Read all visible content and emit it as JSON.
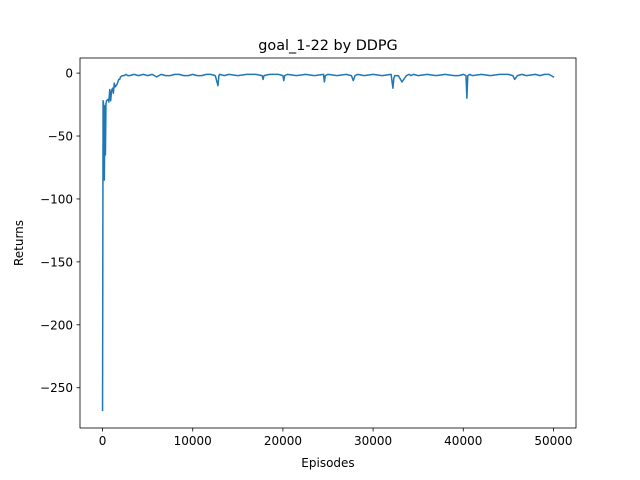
{
  "chart_data": {
    "type": "line",
    "title": "goal_1-22 by DDPG",
    "xlabel": "Episodes",
    "ylabel": "Returns",
    "xlim": [
      -2500,
      52500
    ],
    "ylim": [
      -282,
      12
    ],
    "xticks": [
      0,
      10000,
      20000,
      30000,
      40000,
      50000
    ],
    "xtick_labels": [
      "0",
      "10000",
      "20000",
      "30000",
      "40000",
      "50000"
    ],
    "yticks": [
      0,
      -50,
      -100,
      -150,
      -200,
      -250
    ],
    "ytick_labels": [
      "0",
      "−50",
      "−100",
      "−150",
      "−200",
      "−250"
    ],
    "grid": false,
    "series": [
      {
        "color": "#1f77b4",
        "x": [
          0,
          60,
          120,
          200,
          260,
          320,
          380,
          450,
          550,
          650,
          700,
          800,
          900,
          1000,
          1100,
          1200,
          1300,
          1400,
          1500,
          1600,
          1700,
          1800,
          1900,
          2000,
          2200,
          2400,
          2600,
          2800,
          3000,
          3500,
          4000,
          4500,
          5000,
          5500,
          6000,
          6500,
          7000,
          7500,
          8000,
          8500,
          9000,
          9500,
          10000,
          10500,
          11000,
          11500,
          12000,
          12500,
          12800,
          12900,
          13000,
          13500,
          14000,
          15000,
          16000,
          17000,
          17700,
          17800,
          17900,
          18500,
          19500,
          20000,
          20100,
          20200,
          20500,
          21500,
          22500,
          23500,
          24500,
          24600,
          24700,
          25000,
          26000,
          27000,
          27600,
          27800,
          28000,
          28300,
          29000,
          30000,
          31000,
          32000,
          32200,
          32300,
          32400,
          32800,
          33200,
          33700,
          34000,
          34200,
          34500,
          35000,
          36000,
          37000,
          38000,
          39000,
          39500,
          40000,
          40300,
          40400,
          40500,
          40700,
          41000,
          42000,
          43000,
          44000,
          45000,
          45500,
          45700,
          46000,
          46500,
          47000,
          48000,
          48500,
          49000,
          49500,
          50000
        ],
        "y": [
          -268,
          -22,
          -25,
          -85,
          -26,
          -65,
          -24,
          -22,
          -21,
          -21,
          -23,
          -13,
          -22,
          -14,
          -12,
          -16,
          -8,
          -11,
          -10,
          -9,
          -7,
          -5,
          -5,
          -3,
          -2,
          -2,
          -1,
          -2,
          -2,
          -1,
          -2,
          -1,
          -2,
          -1,
          -3,
          -1,
          -2,
          -2,
          -1,
          -1,
          -2,
          -2,
          -1,
          -2,
          -2,
          -1,
          -1,
          -2,
          -10,
          -2,
          -1,
          -2,
          -1,
          -2,
          -1,
          -1,
          -2,
          -5,
          -2,
          -1,
          -1,
          -2,
          -6,
          -2,
          -1,
          -2,
          -1,
          -2,
          -1,
          -7,
          -2,
          -1,
          -2,
          -1,
          -2,
          -6,
          -2,
          -1,
          -2,
          -1,
          -2,
          -1,
          -12,
          -4,
          -2,
          -2,
          -7,
          -2,
          -1,
          -2,
          -1,
          -2,
          -1,
          -2,
          -1,
          -2,
          -2,
          -1,
          -2,
          -20,
          -2,
          -1,
          -2,
          -1,
          -2,
          -1,
          -1,
          -2,
          -5,
          -2,
          -1,
          -2,
          -1,
          -2,
          -1,
          -1,
          -3
        ]
      }
    ]
  }
}
